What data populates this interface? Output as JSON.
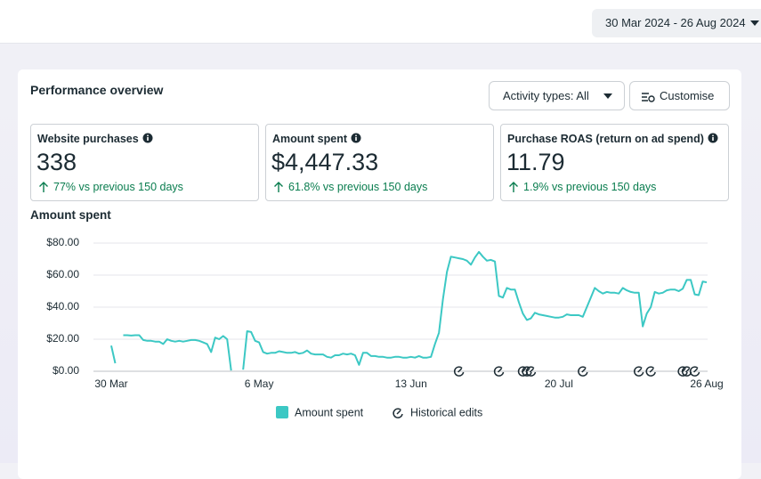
{
  "date_range": "30 Mar 2024 - 26 Aug 2024",
  "panel_title": "Performance overview",
  "buttons": {
    "activity": "Activity types: All",
    "customise": "Customise"
  },
  "metrics": [
    {
      "label": "Website purchases",
      "value": "338",
      "change": "77% vs previous 150 days"
    },
    {
      "label": "Amount spent",
      "value": "$4,447.33",
      "change": "61.8% vs previous 150 days"
    },
    {
      "label": "Purchase ROAS (return on ad spend)",
      "value": "11.79",
      "change": "1.9% vs previous 150 days"
    }
  ],
  "chart_data": {
    "type": "line",
    "title": "Amount spent",
    "categories": [
      "30 Mar",
      null,
      null,
      null,
      null,
      null,
      null,
      null,
      null,
      null,
      null,
      null,
      null,
      null,
      null,
      null,
      null,
      null,
      null,
      null,
      null,
      null,
      null,
      null,
      null,
      null,
      null,
      null,
      null,
      null,
      null,
      null,
      null,
      null,
      null,
      null,
      null,
      "6 May",
      null,
      null,
      null,
      null,
      null,
      null,
      null,
      null,
      null,
      null,
      null,
      null,
      null,
      null,
      null,
      null,
      null,
      null,
      null,
      null,
      null,
      null,
      null,
      null,
      null,
      null,
      null,
      null,
      null,
      null,
      null,
      null,
      null,
      null,
      null,
      null,
      null,
      "13 Jun",
      null,
      null,
      null,
      null,
      null,
      null,
      null,
      null,
      null,
      null,
      null,
      null,
      null,
      null,
      null,
      null,
      null,
      null,
      null,
      null,
      null,
      null,
      null,
      null,
      null,
      null,
      null,
      null,
      null,
      null,
      null,
      null,
      null,
      null,
      null,
      null,
      "20 Jul",
      null,
      null,
      null,
      null,
      null,
      null,
      null,
      null,
      null,
      null,
      null,
      null,
      null,
      null,
      null,
      null,
      null,
      null,
      null,
      null,
      null,
      null,
      null,
      null,
      null,
      null,
      null,
      null,
      null,
      null,
      null,
      null,
      null,
      null,
      null,
      null,
      "26 Aug"
    ],
    "series": [
      {
        "name": "Amount spent",
        "color": "#3cc8c4",
        "values": [
          16,
          5,
          null,
          22.5,
          22.5,
          22.3,
          22.5,
          22.5,
          19.5,
          19,
          19,
          18.5,
          18.5,
          17,
          20,
          19,
          18.5,
          19,
          18.5,
          19,
          19.5,
          19.5,
          19,
          18,
          17,
          12,
          21,
          20,
          22,
          20,
          0.5,
          null,
          null,
          1,
          25,
          24.5,
          19,
          18,
          12,
          11,
          11.5,
          11.5,
          12.5,
          12,
          11.5,
          11.5,
          12,
          11,
          11.5,
          13,
          11,
          10.5,
          10.5,
          10.5,
          9,
          8.5,
          10,
          10,
          11,
          10.5,
          11,
          10,
          4,
          11.5,
          11.5,
          9.5,
          9.5,
          9,
          9,
          8.5,
          8.5,
          9,
          9,
          8.5,
          8.5,
          9,
          8.5,
          9.5,
          8.5,
          8.5,
          9,
          17,
          24,
          45,
          62,
          71.5,
          71,
          70.5,
          70,
          69,
          66.5,
          71,
          74.5,
          71.5,
          69,
          69.5,
          68.5,
          47,
          46,
          52,
          51,
          51,
          43,
          36,
          32,
          33,
          36.5,
          35.5,
          35,
          34.5,
          34,
          33.5,
          33.5,
          34,
          35.5,
          35,
          35,
          35,
          34,
          40,
          46,
          52,
          50,
          48.5,
          49.5,
          49,
          49,
          48.5,
          52,
          50.5,
          49.5,
          49,
          49,
          28,
          36,
          40,
          49.5,
          48.5,
          49,
          50.5,
          51,
          51,
          50,
          51.5,
          57,
          57,
          48,
          47.5,
          56,
          55.5
        ]
      }
    ],
    "ylim": [
      0,
      80
    ],
    "yticks": [
      {
        "value": 0,
        "label": "$0.00"
      },
      {
        "value": 20,
        "label": "$20.00"
      },
      {
        "value": 40,
        "label": "$40.00"
      },
      {
        "value": 60,
        "label": "$60.00"
      },
      {
        "value": 80,
        "label": "$80.00"
      }
    ],
    "grid": true,
    "edits_label": "Historical edits",
    "historical_edits": [
      87,
      97,
      103,
      104,
      105,
      118,
      132,
      135,
      143,
      144,
      146
    ]
  }
}
